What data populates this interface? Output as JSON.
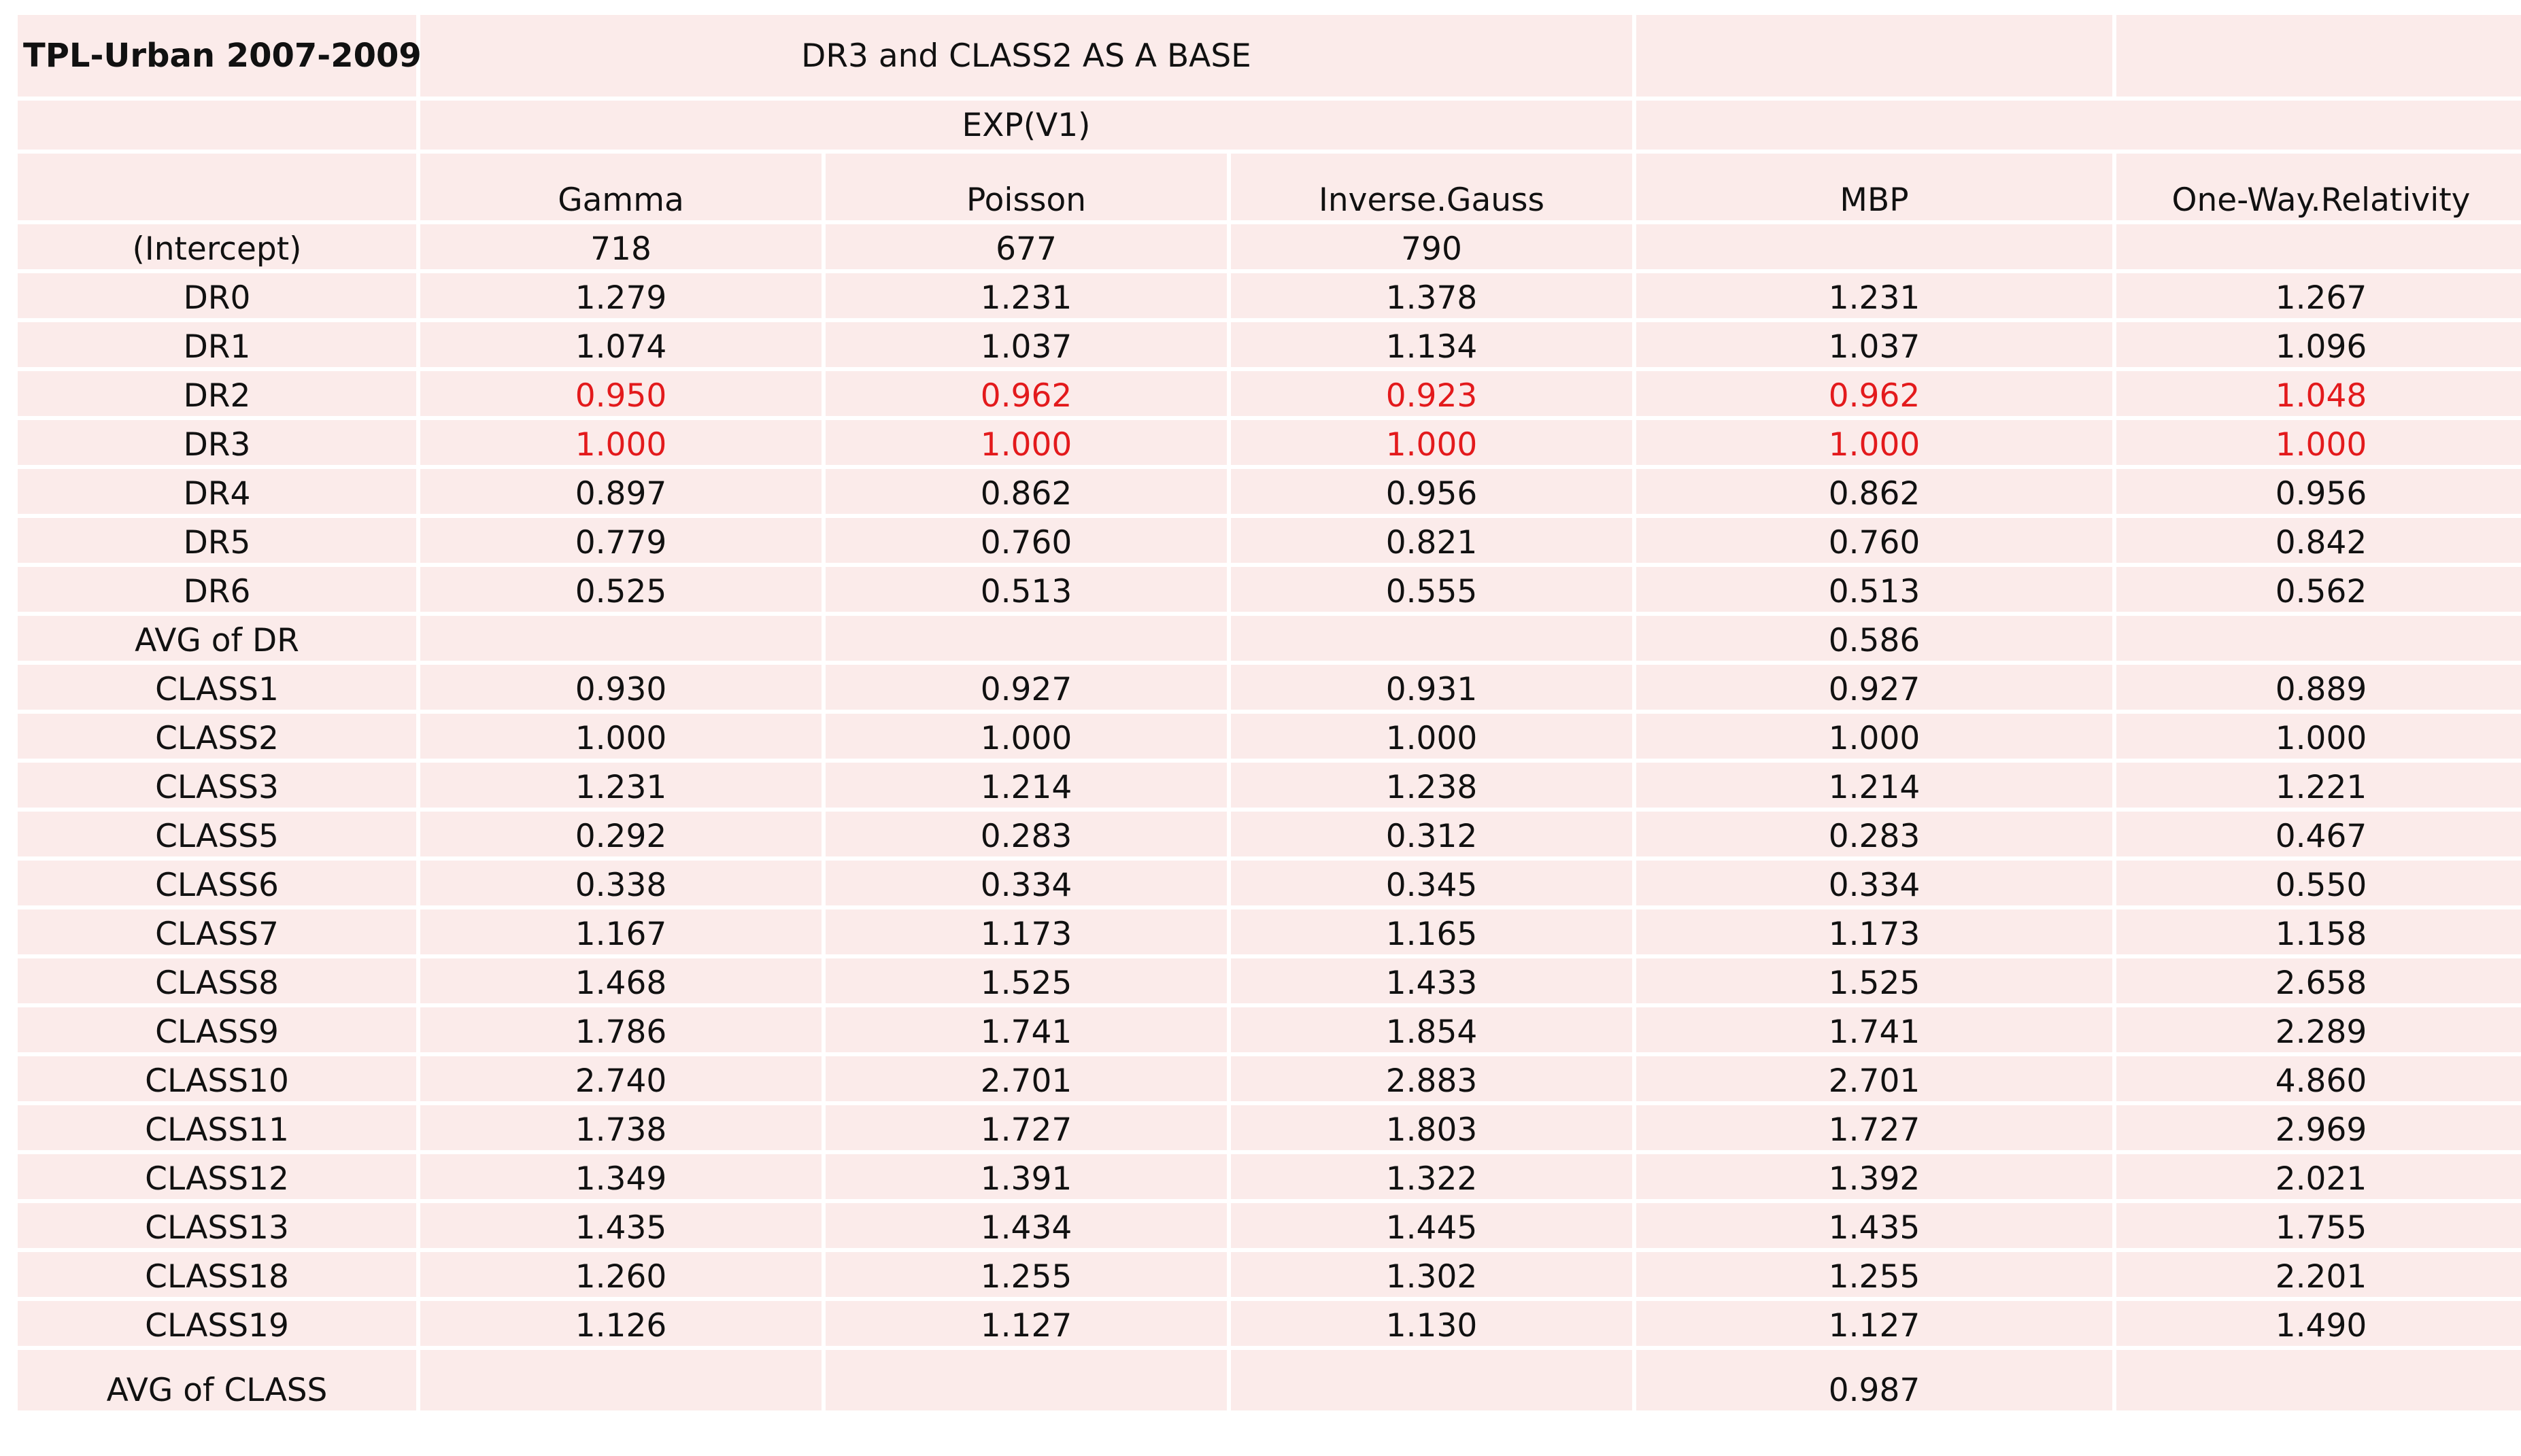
{
  "table": {
    "title": "TPL-Urban 2007-2009",
    "subtitle": "DR3 and CLASS2 AS A BASE",
    "subsubtitle": "EXP(V1)",
    "columns": [
      "Gamma",
      "Poisson",
      "Inverse.Gauss",
      "MBP",
      "One-Way.Relativity"
    ],
    "rows": [
      {
        "label": "(Intercept)",
        "values": [
          "718",
          "677",
          "790",
          "",
          ""
        ],
        "highlight": false
      },
      {
        "label": "DR0",
        "values": [
          "1.279",
          "1.231",
          "1.378",
          "1.231",
          "1.267"
        ],
        "highlight": false
      },
      {
        "label": "DR1",
        "values": [
          "1.074",
          "1.037",
          "1.134",
          "1.037",
          "1.096"
        ],
        "highlight": false
      },
      {
        "label": "DR2",
        "values": [
          "0.950",
          "0.962",
          "0.923",
          "0.962",
          "1.048"
        ],
        "highlight": true
      },
      {
        "label": "DR3",
        "values": [
          "1.000",
          "1.000",
          "1.000",
          "1.000",
          "1.000"
        ],
        "highlight": true
      },
      {
        "label": "DR4",
        "values": [
          "0.897",
          "0.862",
          "0.956",
          "0.862",
          "0.956"
        ],
        "highlight": false
      },
      {
        "label": "DR5",
        "values": [
          "0.779",
          "0.760",
          "0.821",
          "0.760",
          "0.842"
        ],
        "highlight": false
      },
      {
        "label": "DR6",
        "values": [
          "0.525",
          "0.513",
          "0.555",
          "0.513",
          "0.562"
        ],
        "highlight": false
      },
      {
        "label": "AVG of DR",
        "values": [
          "",
          "",
          "",
          "0.586",
          ""
        ],
        "highlight": false
      },
      {
        "label": "CLASS1",
        "values": [
          "0.930",
          "0.927",
          "0.931",
          "0.927",
          "0.889"
        ],
        "highlight": false
      },
      {
        "label": "CLASS2",
        "values": [
          "1.000",
          "1.000",
          "1.000",
          "1.000",
          "1.000"
        ],
        "highlight": false
      },
      {
        "label": "CLASS3",
        "values": [
          "1.231",
          "1.214",
          "1.238",
          "1.214",
          "1.221"
        ],
        "highlight": false
      },
      {
        "label": "CLASS5",
        "values": [
          "0.292",
          "0.283",
          "0.312",
          "0.283",
          "0.467"
        ],
        "highlight": false
      },
      {
        "label": "CLASS6",
        "values": [
          "0.338",
          "0.334",
          "0.345",
          "0.334",
          "0.550"
        ],
        "highlight": false
      },
      {
        "label": "CLASS7",
        "values": [
          "1.167",
          "1.173",
          "1.165",
          "1.173",
          "1.158"
        ],
        "highlight": false
      },
      {
        "label": "CLASS8",
        "values": [
          "1.468",
          "1.525",
          "1.433",
          "1.525",
          "2.658"
        ],
        "highlight": false
      },
      {
        "label": "CLASS9",
        "values": [
          "1.786",
          "1.741",
          "1.854",
          "1.741",
          "2.289"
        ],
        "highlight": false
      },
      {
        "label": "CLASS10",
        "values": [
          "2.740",
          "2.701",
          "2.883",
          "2.701",
          "4.860"
        ],
        "highlight": false
      },
      {
        "label": "CLASS11",
        "values": [
          "1.738",
          "1.727",
          "1.803",
          "1.727",
          "2.969"
        ],
        "highlight": false
      },
      {
        "label": "CLASS12",
        "values": [
          "1.349",
          "1.391",
          "1.322",
          "1.392",
          "2.021"
        ],
        "highlight": false
      },
      {
        "label": "CLASS13",
        "values": [
          "1.435",
          "1.434",
          "1.445",
          "1.435",
          "1.755"
        ],
        "highlight": false
      },
      {
        "label": "CLASS18",
        "values": [
          "1.260",
          "1.255",
          "1.302",
          "1.255",
          "2.201"
        ],
        "highlight": false
      },
      {
        "label": "CLASS19",
        "values": [
          "1.126",
          "1.127",
          "1.130",
          "1.127",
          "1.490"
        ],
        "highlight": false
      },
      {
        "label": "AVG of CLASS",
        "values": [
          "",
          "",
          "",
          "0.987",
          ""
        ],
        "highlight": false
      }
    ]
  }
}
